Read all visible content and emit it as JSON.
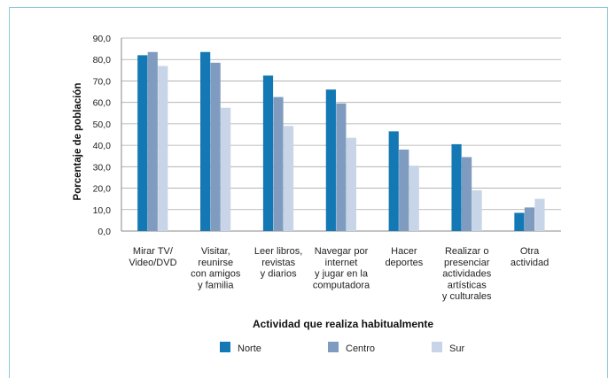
{
  "chart_data": {
    "type": "bar",
    "categories": [
      [
        "Mirar TV/",
        "Video/DVD"
      ],
      [
        "Visitar,",
        "reunirse",
        "con amigos",
        "y familia"
      ],
      [
        "Leer libros,",
        "revistas",
        "y diarios"
      ],
      [
        "Navegar por",
        "internet",
        "y jugar en la",
        "computadora"
      ],
      [
        "Hacer",
        "deportes"
      ],
      [
        "Realizar o",
        "presenciar",
        "actividades",
        "artísticas",
        "y culturales"
      ],
      [
        "Otra",
        "actividad"
      ]
    ],
    "series": [
      {
        "name": "Norte",
        "color": "#1378b3",
        "values": [
          82.0,
          83.5,
          72.5,
          66.0,
          46.5,
          40.5,
          8.5
        ]
      },
      {
        "name": "Centro",
        "color": "#7f9cc0",
        "values": [
          83.5,
          78.5,
          62.5,
          59.5,
          38.0,
          34.5,
          11.0
        ]
      },
      {
        "name": "Sur",
        "color": "#c8d5e8",
        "values": [
          77.0,
          57.5,
          49.0,
          43.5,
          30.5,
          19.0,
          15.0
        ]
      }
    ],
    "ylim": [
      0,
      90
    ],
    "yticks": [
      "0,0",
      "10,0",
      "20,0",
      "30,0",
      "40,0",
      "50,0",
      "60,0",
      "70,0",
      "80,0",
      "90,0"
    ],
    "ylabel": "Porcentaje de población",
    "xlabel": "Actividad que realiza habitualmente",
    "grid": true,
    "legend_position": "bottom"
  }
}
